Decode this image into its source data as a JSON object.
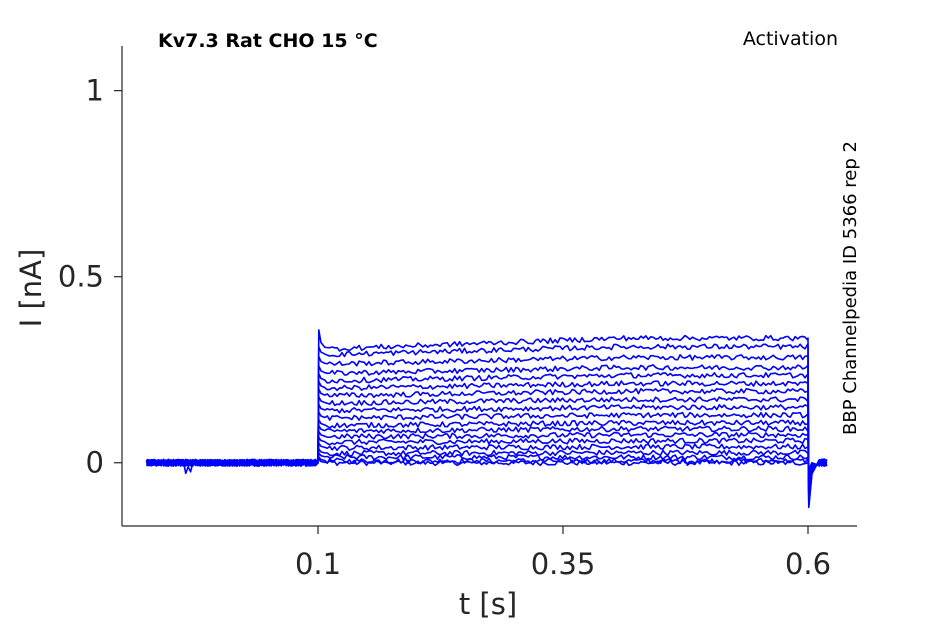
{
  "header": {
    "title": "Kv7.3  Rat  CHO  15 °C",
    "protocol": "Activation",
    "side_label": "BBP Channelpedia ID 5366 rep 2"
  },
  "colors": {
    "trace": "#0000ff",
    "axis": "#262626"
  },
  "chart_data": {
    "type": "line",
    "xlabel": "t [s]",
    "ylabel": "I [nA]",
    "xlim": [
      -0.1,
      0.65
    ],
    "ylim": [
      -0.17,
      1.12
    ],
    "x_ticks": [
      0.1,
      0.35,
      0.6
    ],
    "x_tick_labels": [
      "0.1",
      "0.35",
      "0.6"
    ],
    "y_ticks": [
      0,
      0.5,
      1
    ],
    "y_tick_labels": [
      "0",
      "0.5",
      "1"
    ],
    "grid": false,
    "legend": "none",
    "pulse_start_s": 0.1,
    "pulse_end_s": 0.6,
    "baseline_nA": 0.0,
    "steady_state_currents_nA": [
      0.0,
      0.005,
      0.015,
      0.025,
      0.04,
      0.055,
      0.07,
      0.085,
      0.1,
      0.12,
      0.14,
      0.16,
      0.18,
      0.2,
      0.22,
      0.24,
      0.265,
      0.29,
      0.305
    ],
    "late_drift_nA": [
      0.0,
      0.0,
      0.0,
      0.002,
      0.003,
      0.004,
      0.005,
      0.006,
      0.007,
      0.008,
      0.009,
      0.01,
      0.012,
      0.013,
      0.015,
      0.016,
      0.018,
      0.022,
      0.03
    ],
    "onset_peak_nA": 0.355,
    "offset_tail_nA": -0.12
  }
}
